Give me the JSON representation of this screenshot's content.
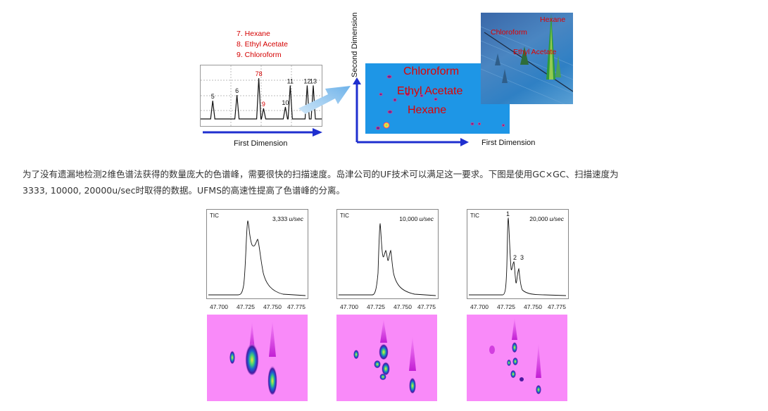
{
  "top_figure": {
    "legend": [
      "7. Hexane",
      "8. Ethyl Acetate",
      "9. Chloroform"
    ],
    "chromatogram_1d": {
      "peaks": [
        {
          "label": "5",
          "position": 0.1,
          "height": 0.38
        },
        {
          "label": "6",
          "position": 0.3,
          "height": 0.5
        },
        {
          "label": "78",
          "position": 0.48,
          "height": 0.85
        },
        {
          "label": "9",
          "position": 0.52,
          "height": 0.22
        },
        {
          "label": "10",
          "position": 0.7,
          "height": 0.25
        },
        {
          "label": "11",
          "position": 0.74,
          "height": 0.7
        },
        {
          "label": "12",
          "position": 0.88,
          "height": 0.7
        },
        {
          "label": "13",
          "position": 0.93,
          "height": 0.7
        }
      ]
    },
    "first_dimension_left": "First Dimension",
    "second_dimension": "Second Dimension",
    "map_labels": [
      "Chloroform",
      "Ethyl Acetate",
      "Hexane"
    ],
    "surface_labels": [
      "Hexane",
      "Chloroform",
      "Ethyl Acetate"
    ],
    "first_dimension_right": "First Dimension"
  },
  "paragraph": {
    "line1": "为了没有遗漏地检测2维色谱法获得的数量庞大的色谱峰，需要很快的扫描速度。岛津公司的UF技术可以满足这一要求。下图是使用GC×GC、扫描速度为",
    "line2": "3333, 10000, 20000u/sec时取得的数据。UFMS的高速性提高了色谱峰的分离。"
  },
  "panels": [
    {
      "tic": "TIC",
      "speed_value": "3,333",
      "speed_unit": "u/sec",
      "peak_labels": []
    },
    {
      "tic": "TIC",
      "speed_value": "10,000",
      "speed_unit": "u/sec",
      "peak_labels": []
    },
    {
      "tic": "TIC",
      "speed_value": "20,000",
      "speed_unit": "u/sec",
      "peak_labels": [
        "1",
        "2",
        "3"
      ]
    }
  ],
  "x_ticks": [
    "47.700",
    "47.725",
    "47.750",
    "47.775"
  ],
  "colors": {
    "legend_red": "#d40000",
    "map_blue": "#1e96e6",
    "heatmap_magenta": "#f98af9",
    "axis_blue": "#1f2fcf"
  }
}
